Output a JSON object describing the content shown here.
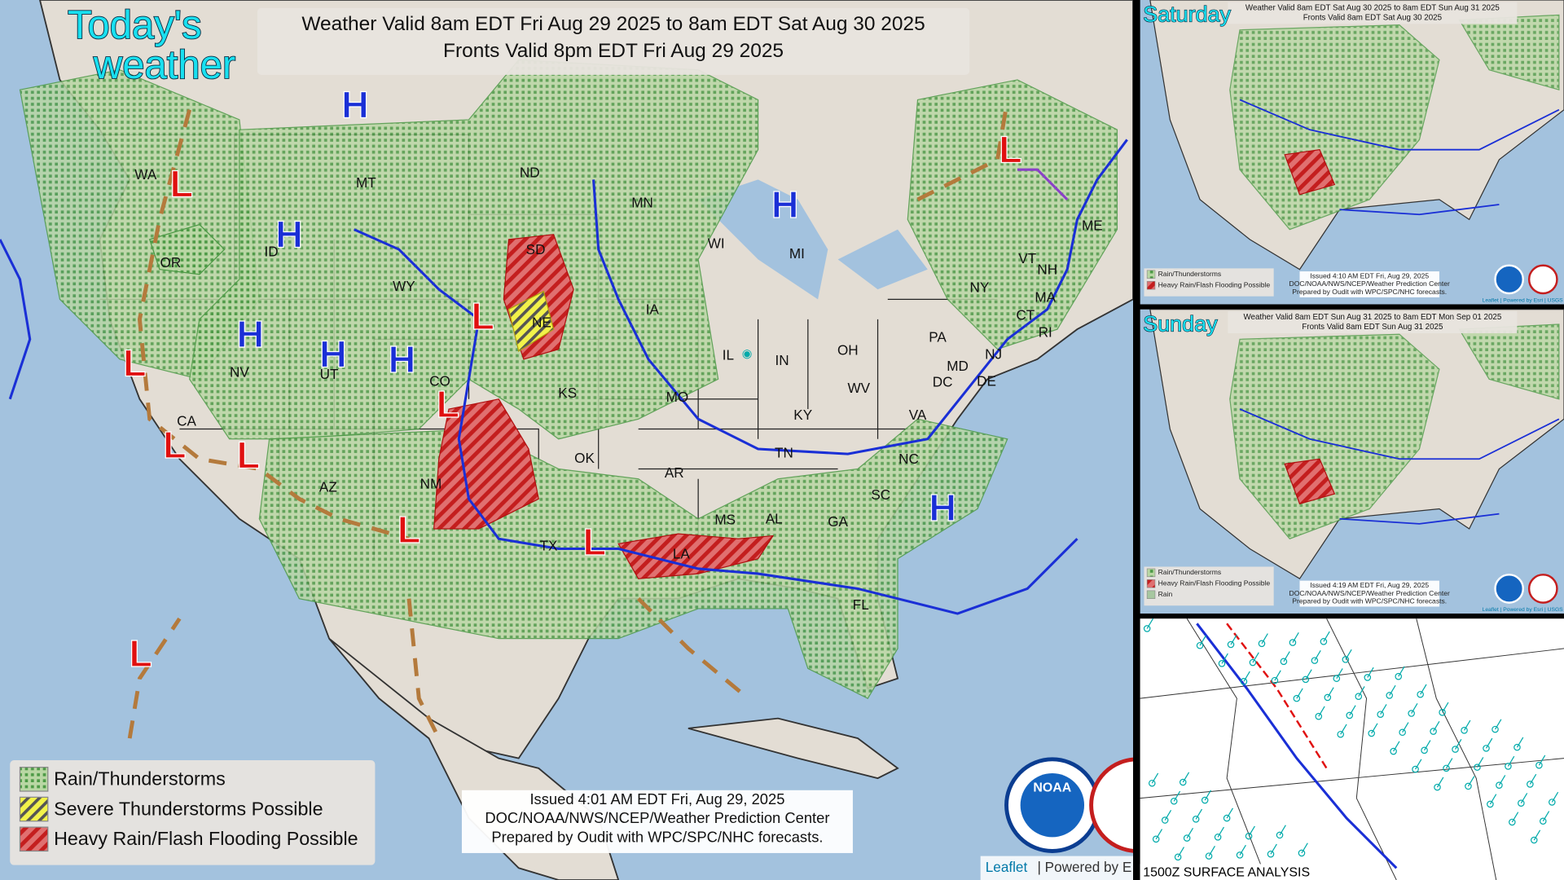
{
  "main": {
    "badge": [
      "Today's",
      "weather"
    ],
    "title": [
      "Weather Valid 8am EDT Fri Aug 29 2025 to 8am EDT Sat Aug 30 2025",
      "Fronts Valid 8pm EDT Fri Aug 29 2025"
    ],
    "legend": [
      "Rain/Thunderstorms",
      "Severe Thunderstorms Possible",
      "Heavy Rain/Flash Flooding Possible"
    ],
    "issued": [
      "Issued  4:01 AM EDT  Fri, Aug 29, 2025",
      "DOC/NOAA/NWS/NCEP/Weather Prediction Center",
      "Prepared by Oudit with WPC/SPC/NHC forecasts."
    ],
    "logo": "NOAA",
    "attribution": [
      "Leaflet",
      "| Powered by E"
    ],
    "states": [
      "WA",
      "OR",
      "ID",
      "MT",
      "WY",
      "NV",
      "UT",
      "CO",
      "CA",
      "AZ",
      "NM",
      "ND",
      "SD",
      "NE",
      "KS",
      "OK",
      "TX",
      "MN",
      "IA",
      "MO",
      "AR",
      "LA",
      "WI",
      "IL",
      "MI",
      "IN",
      "KY",
      "TN",
      "MS",
      "AL",
      "GA",
      "FL",
      "SC",
      "NC",
      "VA",
      "WV",
      "OH",
      "PA",
      "NY",
      "VT",
      "NH",
      "ME",
      "MA",
      "CT",
      "RI",
      "NJ",
      "DE",
      "MD",
      "DC"
    ],
    "highs": [
      "H",
      "H",
      "H",
      "H",
      "H",
      "H",
      "H"
    ],
    "lows": [
      "L",
      "L",
      "L",
      "L",
      "L",
      "L",
      "L",
      "L",
      "L",
      "L"
    ]
  },
  "saturday": {
    "badge": "Saturday",
    "title": [
      "Weather Valid 8am EDT Sat Aug 30 2025 to 8am EDT Sun Aug 31 2025",
      "Fronts Valid 8am EDT Sat Aug 30 2025"
    ],
    "legend": [
      "Rain/Thunderstorms",
      "Heavy Rain/Flash Flooding Possible"
    ],
    "issued": [
      "Issued  4:10 AM EDT  Fri, Aug 29, 2025",
      "DOC/NOAA/NWS/NCEP/Weather Prediction Center",
      "Prepared by Oudit with WPC/SPC/NHC forecasts."
    ],
    "attribution": "Leaflet | Powered by Esri | USGS"
  },
  "sunday": {
    "badge": "Sunday",
    "title": [
      "Weather Valid 8am EDT Sun Aug 31 2025 to 8am EDT Mon Sep 01 2025",
      "Fronts Valid 8am EDT Sun Aug 31 2025"
    ],
    "legend": [
      "Rain/Thunderstorms",
      "Heavy Rain/Flash Flooding Possible",
      "Rain"
    ],
    "issued": [
      "Issued  4:19 AM EDT  Fri, Aug 29, 2025",
      "DOC/NOAA/NWS/NCEP/Weather Prediction Center",
      "Prepared by Oudit with WPC/SPC/NHC forecasts."
    ],
    "attribution": "Leaflet | Powered by Esri | USGS"
  },
  "surface": {
    "label": "1500Z SURFACE ANALYSIS"
  }
}
